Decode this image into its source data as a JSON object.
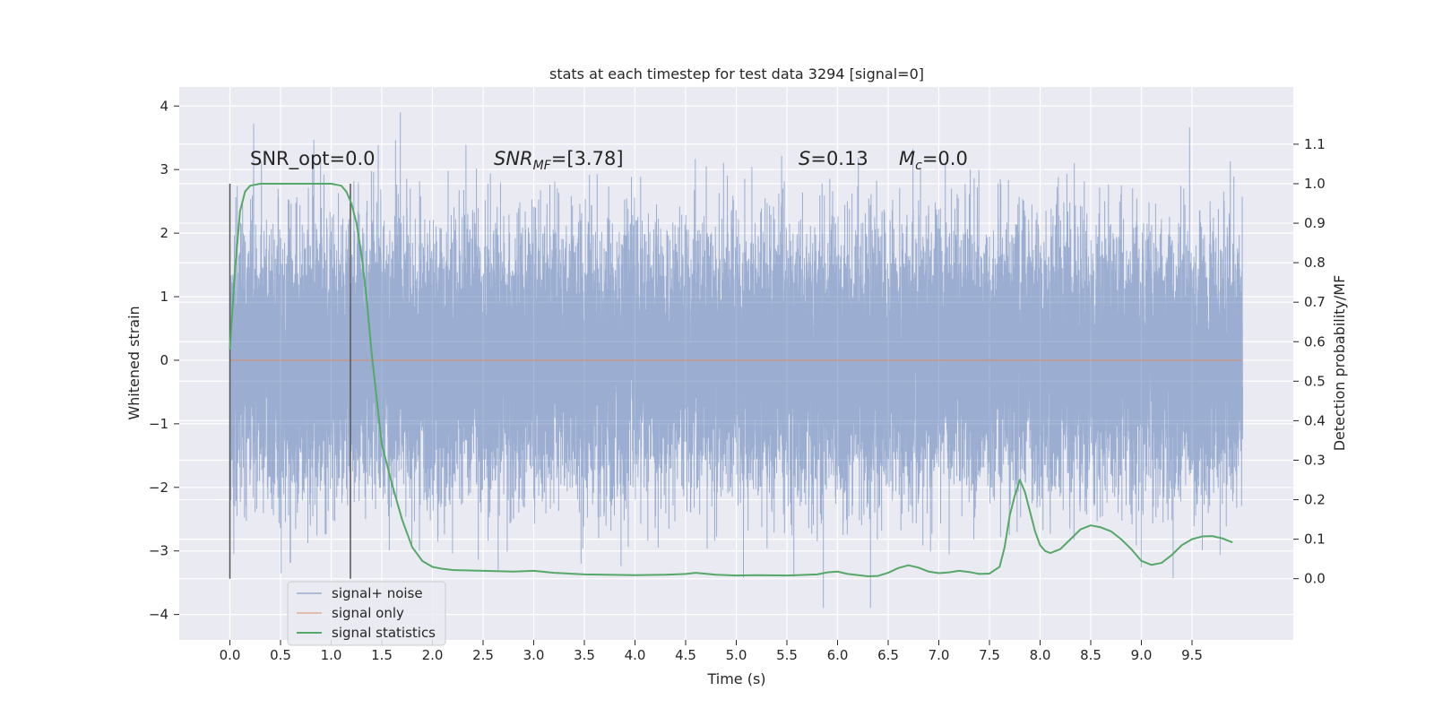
{
  "chart_data": {
    "type": "line",
    "title": "stats at each timestep for test data 3294 [signal=0]",
    "xlabel": "Time (s)",
    "ylabel": "Whitened strain",
    "y2label": "Detection probability/MF",
    "xlim": [
      -0.5,
      10.5
    ],
    "ylim": [
      -4.4,
      4.3
    ],
    "y2lim": [
      -0.155,
      1.245
    ],
    "x_ticks": [
      "0.0",
      "0.5",
      "1.0",
      "1.5",
      "2.0",
      "2.5",
      "3.0",
      "3.5",
      "4.0",
      "4.5",
      "5.0",
      "5.5",
      "6.0",
      "6.5",
      "7.0",
      "7.5",
      "8.0",
      "8.5",
      "9.0",
      "9.5"
    ],
    "y_ticks": [
      "−4",
      "−3",
      "−2",
      "−1",
      "0",
      "1",
      "2",
      "3",
      "4"
    ],
    "y2_ticks": [
      "0.0",
      "0.1",
      "0.2",
      "0.3",
      "0.4",
      "0.5",
      "0.6",
      "0.7",
      "0.8",
      "0.9",
      "1.0",
      "1.1"
    ],
    "grid": true,
    "legend_position": "lower-left",
    "annotations": {
      "snr_opt": "SNR_opt=0.0",
      "snr_mf_main": "SNR",
      "snr_mf_sub": "MF",
      "snr_mf_rest": "=[3.78]",
      "s_main": "S",
      "s_rest": "=0.13",
      "mc_main": "M",
      "mc_sub": "c",
      "mc_rest": "=0.0"
    },
    "vertical_markers_x": [
      0.0,
      1.19
    ],
    "series": [
      {
        "name": "signal+ noise",
        "color": "#4c72b0",
        "kind": "noise",
        "x_range": [
          0.0,
          10.0
        ],
        "sample_rate": 2048,
        "std": 1.0,
        "observed_max": 3.9,
        "observed_min": -3.9
      },
      {
        "name": "signal only",
        "color": "#dd8452",
        "kind": "line",
        "x": [
          0.0,
          10.0
        ],
        "y": [
          0.0,
          0.0
        ]
      },
      {
        "name": "signal statistics",
        "color": "#55a868",
        "kind": "line",
        "axis": "right",
        "x": [
          0.0,
          0.05,
          0.1,
          0.15,
          0.2,
          0.3,
          0.4,
          0.5,
          0.7,
          0.9,
          1.0,
          1.1,
          1.15,
          1.2,
          1.25,
          1.3,
          1.35,
          1.4,
          1.5,
          1.6,
          1.7,
          1.8,
          1.9,
          2.0,
          2.1,
          2.2,
          2.5,
          2.8,
          3.0,
          3.2,
          3.5,
          4.0,
          4.3,
          4.5,
          4.6,
          4.8,
          5.0,
          5.2,
          5.5,
          5.8,
          5.9,
          6.0,
          6.1,
          6.3,
          6.4,
          6.5,
          6.6,
          6.7,
          6.8,
          6.9,
          7.0,
          7.1,
          7.2,
          7.3,
          7.4,
          7.5,
          7.6,
          7.65,
          7.7,
          7.75,
          7.8,
          7.85,
          7.9,
          7.95,
          8.0,
          8.05,
          8.1,
          8.2,
          8.3,
          8.4,
          8.5,
          8.6,
          8.7,
          8.8,
          8.9,
          9.0,
          9.1,
          9.2,
          9.3,
          9.4,
          9.5,
          9.6,
          9.7,
          9.8,
          9.9
        ],
        "y": [
          0.58,
          0.78,
          0.93,
          0.98,
          0.995,
          1.0,
          1.0,
          1.0,
          1.0,
          1.0,
          1.0,
          0.995,
          0.98,
          0.95,
          0.9,
          0.82,
          0.71,
          0.57,
          0.34,
          0.24,
          0.15,
          0.08,
          0.045,
          0.03,
          0.025,
          0.022,
          0.02,
          0.018,
          0.02,
          0.015,
          0.011,
          0.009,
          0.01,
          0.012,
          0.015,
          0.01,
          0.008,
          0.009,
          0.008,
          0.011,
          0.016,
          0.018,
          0.012,
          0.006,
          0.007,
          0.015,
          0.027,
          0.034,
          0.028,
          0.018,
          0.014,
          0.016,
          0.02,
          0.017,
          0.012,
          0.013,
          0.03,
          0.08,
          0.16,
          0.21,
          0.25,
          0.22,
          0.17,
          0.12,
          0.085,
          0.07,
          0.065,
          0.075,
          0.1,
          0.125,
          0.135,
          0.13,
          0.12,
          0.1,
          0.075,
          0.045,
          0.035,
          0.04,
          0.06,
          0.085,
          0.1,
          0.107,
          0.108,
          0.102,
          0.092
        ]
      }
    ]
  }
}
